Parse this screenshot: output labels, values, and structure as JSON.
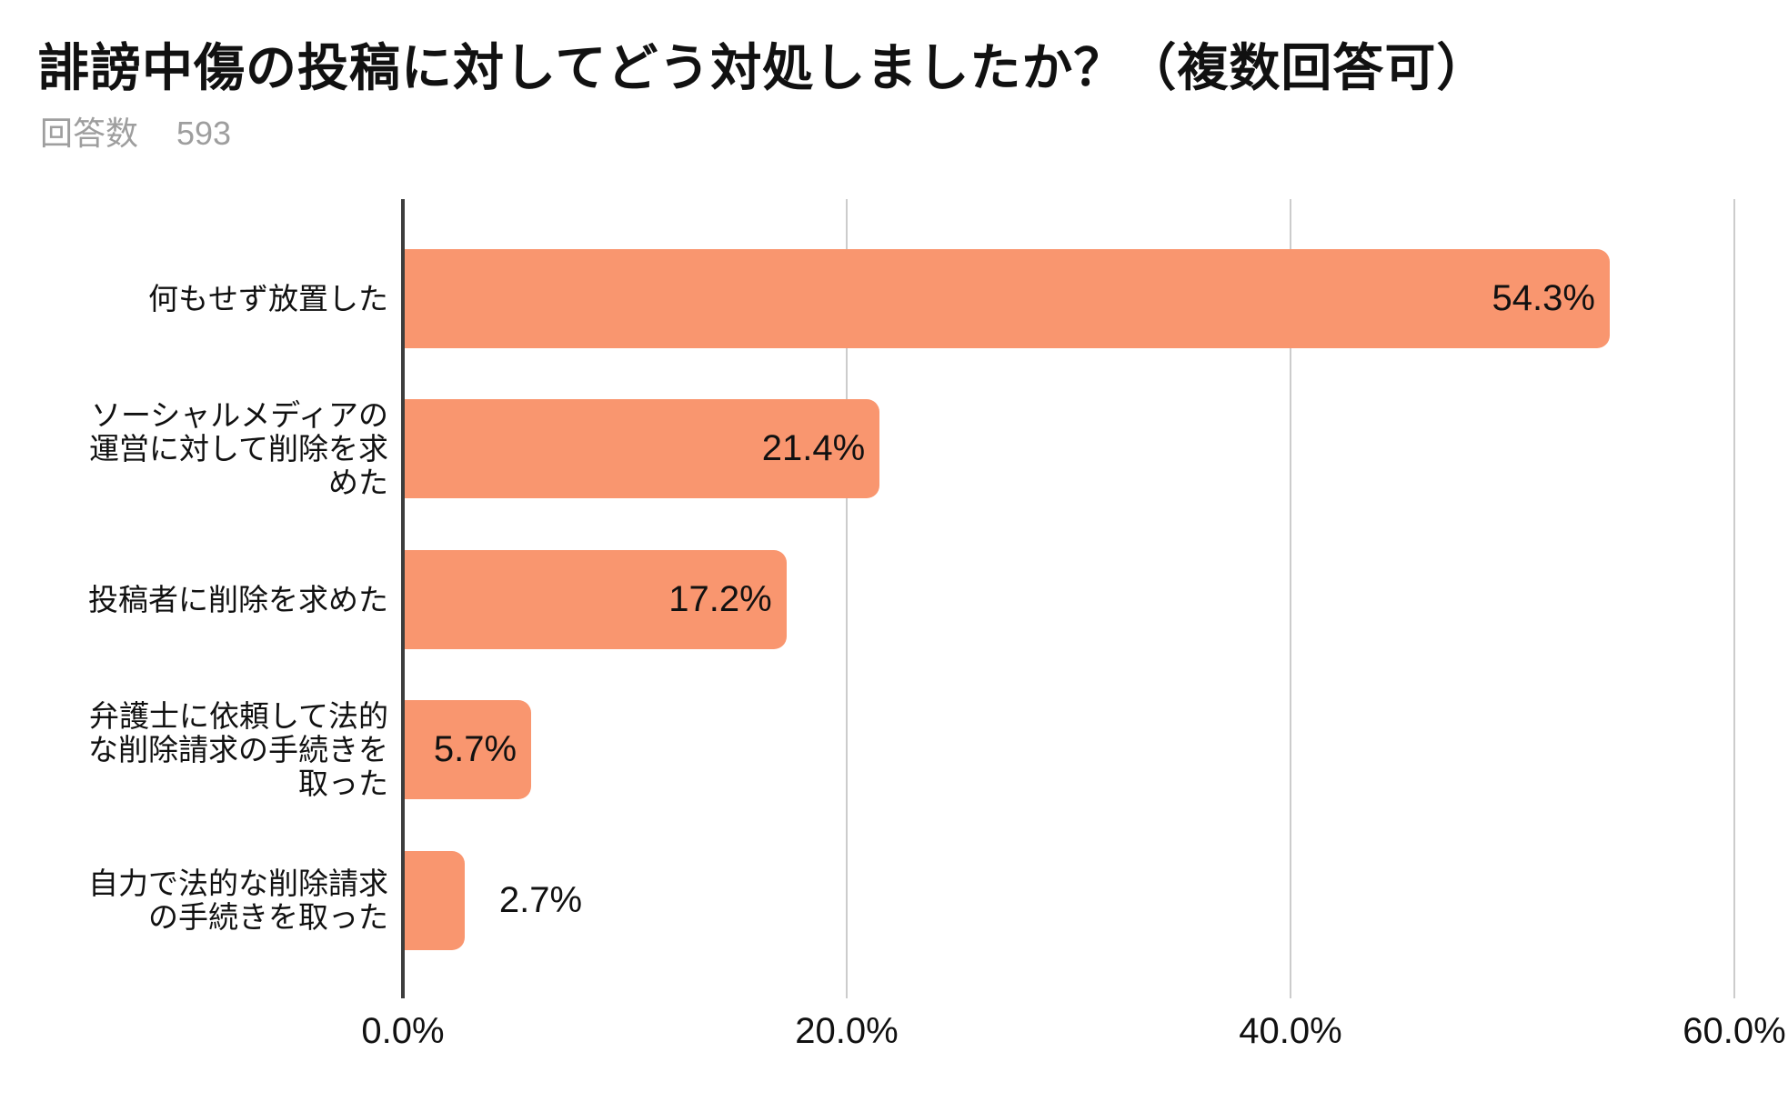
{
  "page": {
    "background": "#ffffff"
  },
  "header": {
    "title": "誹謗中傷の投稿に対してどう対処しましたか？（複数回答可）",
    "respondents_label": "回答数",
    "respondents_value": "593"
  },
  "chart_data": {
    "type": "bar",
    "orientation": "horizontal",
    "title": "誹謗中傷の投稿に対してどう対処しましたか？（複数回答可）",
    "subtitle": "回答数 593",
    "categories": [
      "何もせず放置した",
      "ソーシャルメディアの運営に対して削除を求めた",
      "投稿者に削除を求めた",
      "弁護士に依頼して法的な削除請求の手続きを取った",
      "自力で法的な削除請求の手続きを取った"
    ],
    "category_lines": [
      [
        "何もせず放置した"
      ],
      [
        "ソーシャルメディアの",
        "運営に対して削除を求",
        "めた"
      ],
      [
        "投稿者に削除を求めた"
      ],
      [
        "弁護士に依頼して法的",
        "な削除請求の手続きを",
        "取った"
      ],
      [
        "自力で法的な削除請求",
        "の手続きを取った"
      ]
    ],
    "values": [
      54.3,
      21.4,
      17.2,
      5.7,
      2.7
    ],
    "value_labels": [
      "54.3%",
      "21.4%",
      "17.2%",
      "5.7%",
      "2.7%"
    ],
    "xlabel": "",
    "ylabel": "",
    "xlim": [
      0,
      60
    ],
    "x_tick_values": [
      0,
      20,
      40,
      60
    ],
    "x_tick_labels": [
      "0.0%",
      "20.0%",
      "40.0%",
      "60.0%"
    ],
    "grid": true,
    "legend": false,
    "colors": {
      "bar": "#f9966f",
      "gridline": "#cccccc",
      "axis": "#3d3d3d",
      "title_text": "#111111",
      "subtitle_text": "#9e9e9e",
      "label_text": "#111111"
    }
  }
}
